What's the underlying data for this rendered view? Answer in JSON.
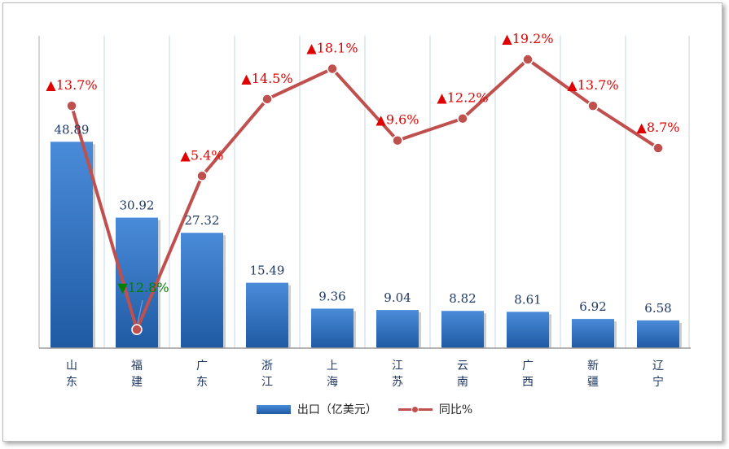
{
  "chart_data": {
    "type": "bar",
    "categories": [
      "山东",
      "福建",
      "广东",
      "浙江",
      "上海",
      "江苏",
      "云南",
      "广西",
      "新疆",
      "辽宁"
    ],
    "series": [
      {
        "name": "出口（亿美元）",
        "type": "bar",
        "values": [
          48.89,
          30.92,
          27.32,
          15.49,
          9.36,
          9.04,
          8.82,
          8.61,
          6.92,
          6.58
        ],
        "color": "#2f6fbd"
      },
      {
        "name": "同比%",
        "type": "line",
        "values": [
          13.7,
          -12.8,
          5.4,
          14.5,
          18.1,
          9.6,
          12.2,
          19.2,
          13.7,
          8.7
        ],
        "color": "#c0504d"
      }
    ],
    "bar_labels": [
      "48.89",
      "30.92",
      "27.32",
      "15.49",
      "9.36",
      "9.04",
      "8.82",
      "8.61",
      "6.92",
      "6.58"
    ],
    "line_labels": [
      "▲13.7%",
      "▼12.8%",
      "▲5.4%",
      "▲14.5%",
      "▲18.1%",
      "▲9.6%",
      "▲12.2%",
      "▲19.2%",
      "▲13.7%",
      "▲8.7%"
    ],
    "bar_axis_range": [
      0,
      74
    ],
    "line_axis_range": [
      -15,
      22
    ],
    "grid": "vertical",
    "legend_position": "bottom",
    "up_color": "#e00000",
    "down_color": "#008000",
    "bar_label_color": "#1f3864"
  }
}
